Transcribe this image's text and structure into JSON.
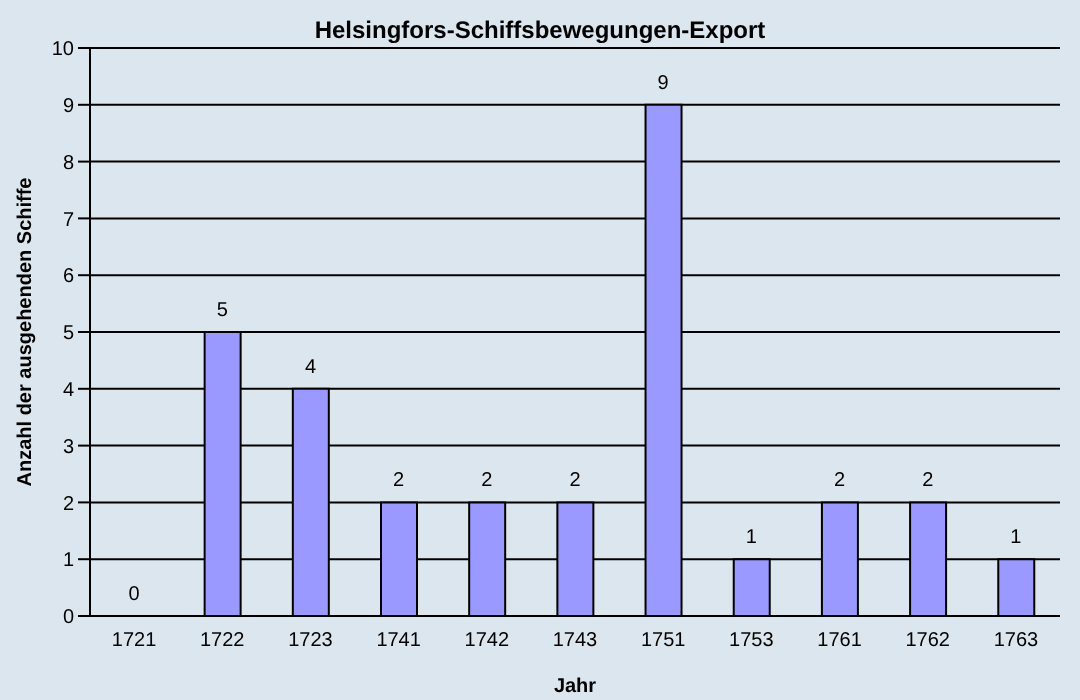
{
  "chart_data": {
    "type": "bar",
    "title": "Helsingfors-Schiffsbewegungen-Export",
    "xlabel": "Jahr",
    "ylabel": "Anzahl der ausgehenden Schiffe",
    "categories": [
      "1721",
      "1722",
      "1723",
      "1741",
      "1742",
      "1743",
      "1751",
      "1753",
      "1761",
      "1762",
      "1763"
    ],
    "values": [
      0,
      5,
      4,
      2,
      2,
      2,
      9,
      1,
      2,
      2,
      1
    ],
    "color": "#9999ff",
    "ylim": [
      0,
      10
    ],
    "yticks": [
      0,
      1,
      2,
      3,
      4,
      5,
      6,
      7,
      8,
      9,
      10
    ],
    "grid": "y",
    "data_labels": true
  }
}
